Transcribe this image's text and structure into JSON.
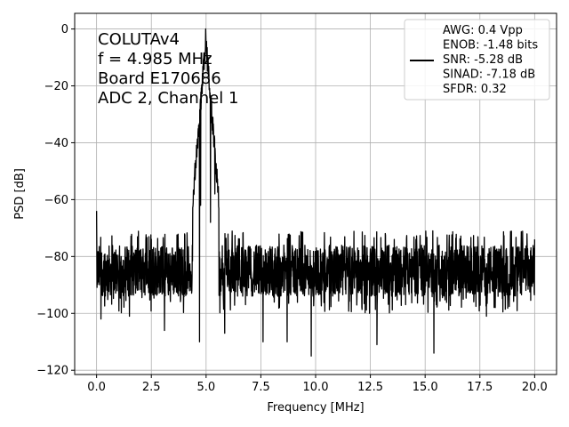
{
  "chart_data": {
    "type": "line",
    "xlabel": "Frequency [MHz]",
    "ylabel": "PSD [dB]",
    "xlim": [
      -1.0,
      21.0
    ],
    "ylim": [
      -121.5,
      5.5
    ],
    "xticks": [
      0.0,
      2.5,
      5.0,
      7.5,
      10.0,
      12.5,
      15.0,
      17.5,
      20.0
    ],
    "xtick_labels": [
      "0.0",
      "2.5",
      "5.0",
      "7.5",
      "10.0",
      "12.5",
      "15.0",
      "17.5",
      "20.0"
    ],
    "yticks": [
      0,
      -20,
      -40,
      -60,
      -80,
      -100,
      -120
    ],
    "ytick_labels": [
      "0",
      "−20",
      "−40",
      "−60",
      "−80",
      "−100",
      "−120"
    ],
    "grid": true,
    "legend_position": "top-right",
    "annotation_lines": [
      "COLUTAv4",
      "f = 4.985 MHz",
      "Board E170686",
      "ADC 2, Channel 1"
    ],
    "series": [
      {
        "name": "AWG: 0.4 Vpp\nENOB: -1.48 bits\nSNR: -5.28 dB\nSINAD: -7.18 dB\nSFDR: 0.32",
        "color": "#000000",
        "peak_frequency": 4.985,
        "peak_value": 0,
        "x_range": [
          0.0,
          20.0
        ],
        "noise_floor_range": [
          -100,
          -72
        ],
        "notable_points": [
          {
            "x": 0.0,
            "y": -64
          },
          {
            "x": 0.2,
            "y": -102
          },
          {
            "x": 1.5,
            "y": -101
          },
          {
            "x": 3.1,
            "y": -106
          },
          {
            "x": 4.7,
            "y": -110
          },
          {
            "x": 4.75,
            "y": -62
          },
          {
            "x": 4.985,
            "y": 0
          },
          {
            "x": 5.2,
            "y": -68
          },
          {
            "x": 5.4,
            "y": -58
          },
          {
            "x": 5.85,
            "y": -107
          },
          {
            "x": 7.6,
            "y": -110
          },
          {
            "x": 8.7,
            "y": -110
          },
          {
            "x": 9.8,
            "y": -115
          },
          {
            "x": 12.8,
            "y": -111
          },
          {
            "x": 15.4,
            "y": -114
          },
          {
            "x": 17.8,
            "y": -101
          },
          {
            "x": 20.0,
            "y": -74
          }
        ]
      }
    ]
  }
}
